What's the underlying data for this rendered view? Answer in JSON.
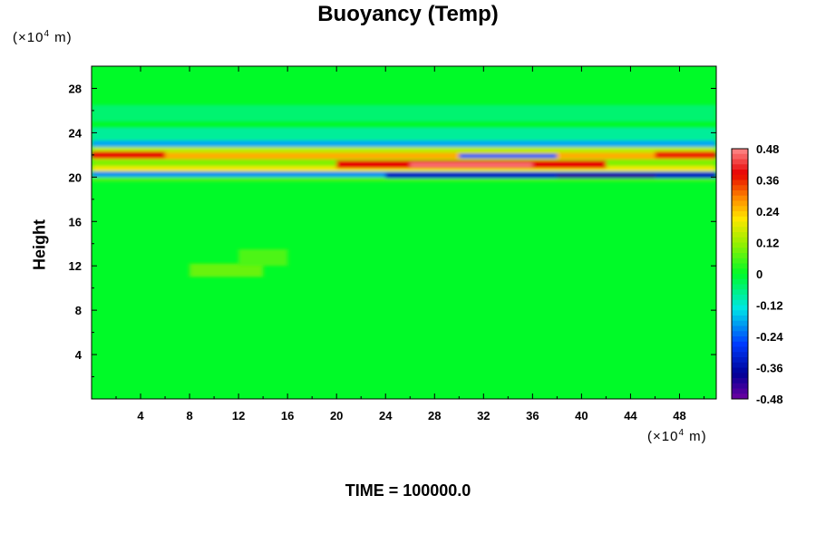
{
  "chart_data": {
    "type": "heatmap",
    "title": "Buoyancy (Temp)",
    "ylabel": "Height",
    "xlabel": "",
    "x_unit_base": "(×10",
    "x_unit_exp": "4",
    "x_unit_tail": " m)",
    "y_unit_base": "(×10",
    "y_unit_exp": "4",
    "y_unit_tail": " m)",
    "xlim": [
      0,
      51
    ],
    "ylim": [
      0,
      30
    ],
    "x_ticks": [
      4,
      8,
      12,
      16,
      20,
      24,
      28,
      32,
      36,
      40,
      44,
      48
    ],
    "y_ticks": [
      4,
      8,
      12,
      16,
      20,
      24,
      28
    ],
    "colorbar": {
      "range": [
        -0.48,
        0.48
      ],
      "tick_labels": [
        "0.48",
        "0.36",
        "0.24",
        "0.12",
        "0",
        "-0.12",
        "-0.24",
        "-0.36",
        "-0.48"
      ],
      "tick_values": [
        0.48,
        0.36,
        0.24,
        0.12,
        0,
        -0.12,
        -0.24,
        -0.36,
        -0.48
      ]
    },
    "background_value": 0.0,
    "bands": [
      {
        "x0": 0,
        "x1": 51,
        "y0": 25.0,
        "y1": 26.5,
        "value": -0.05
      },
      {
        "x0": 0,
        "x1": 51,
        "y0": 23.3,
        "y1": 24.5,
        "value": -0.08
      },
      {
        "x0": 0,
        "x1": 51,
        "y0": 22.7,
        "y1": 23.3,
        "value": -0.18
      },
      {
        "x0": 0,
        "x1": 51,
        "y0": 22.2,
        "y1": 22.7,
        "value": 0.15
      },
      {
        "x0": 0,
        "x1": 51,
        "y0": 21.6,
        "y1": 22.2,
        "value": 0.26
      },
      {
        "x0": 0,
        "x1": 51,
        "y0": 21.0,
        "y1": 21.6,
        "value": 0.1
      },
      {
        "x0": 0,
        "x1": 51,
        "y0": 20.5,
        "y1": 21.0,
        "value": 0.2
      },
      {
        "x0": 0,
        "x1": 51,
        "y0": 20.0,
        "y1": 20.5,
        "value": -0.2
      },
      {
        "x0": 0,
        "x1": 51,
        "y0": 19.6,
        "y1": 20.0,
        "value": 0.06
      },
      {
        "x0": 0,
        "x1": 6,
        "y0": 21.7,
        "y1": 22.3,
        "value": 0.38
      },
      {
        "x0": 20,
        "x1": 42,
        "y0": 20.8,
        "y1": 21.5,
        "value": 0.38
      },
      {
        "x0": 26,
        "x1": 36,
        "y0": 20.9,
        "y1": 21.3,
        "value": 0.46
      },
      {
        "x0": 46,
        "x1": 51,
        "y0": 21.7,
        "y1": 22.3,
        "value": 0.36
      },
      {
        "x0": 24,
        "x1": 51,
        "y0": 19.9,
        "y1": 20.4,
        "value": -0.34
      },
      {
        "x0": 38,
        "x1": 46,
        "y0": 19.9,
        "y1": 20.3,
        "value": -0.42
      },
      {
        "x0": 30,
        "x1": 38,
        "y0": 21.7,
        "y1": 22.1,
        "value": -0.24
      },
      {
        "x0": 8,
        "x1": 14,
        "y0": 11.0,
        "y1": 12.2,
        "value": 0.08
      },
      {
        "x0": 12,
        "x1": 16,
        "y0": 12.0,
        "y1": 13.5,
        "value": 0.06
      }
    ]
  },
  "footer": {
    "time_label": "TIME = 100000.0"
  }
}
